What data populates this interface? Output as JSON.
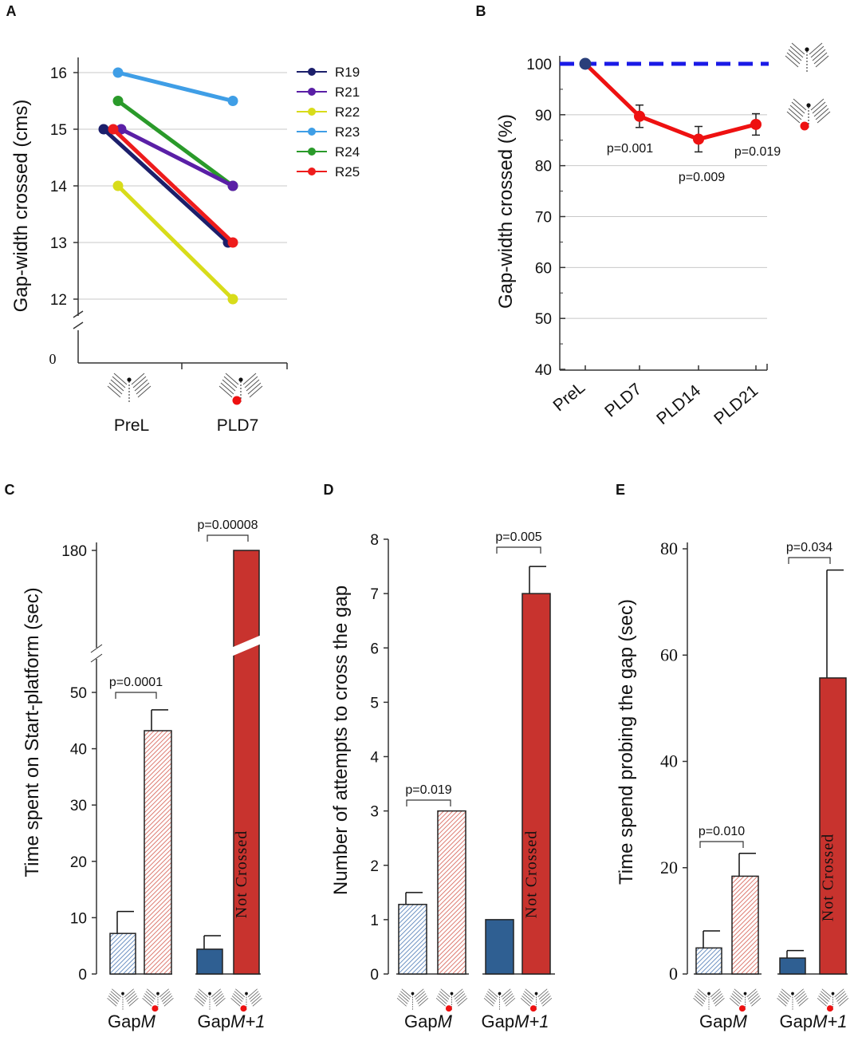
{
  "colors": {
    "blue_dash": "#1a1ae6",
    "red_line": "#ee1111",
    "dark_blue_bar": "#2f5f92",
    "red_bar": "#c8332e",
    "hatch_blue": "#9cb9dc",
    "hatch_red": "#e69a92",
    "grid": "#c8c8c8"
  },
  "icons": [
    "gap-platform-icon",
    "gap-platform-lesion-icon"
  ],
  "chart_data": [
    {
      "panel": "A",
      "type": "line",
      "ylabel": "Gap-width crossed (cms)",
      "categories": [
        "PreL",
        "PLD7"
      ],
      "ylim": [
        12,
        16
      ],
      "yticks": [
        12,
        13,
        14,
        15,
        16
      ],
      "y_break_label": "0",
      "grid": true,
      "legend_position": "top-right",
      "series": [
        {
          "name": "R19",
          "color": "#1c1f6b",
          "values": [
            15.0,
            13.0
          ]
        },
        {
          "name": "R21",
          "color": "#5a1fa6",
          "values": [
            15.0,
            14.0
          ]
        },
        {
          "name": "R22",
          "color": "#d8dc1a",
          "values": [
            14.0,
            12.0
          ]
        },
        {
          "name": "R23",
          "color": "#3f9ee6",
          "values": [
            16.0,
            15.5
          ]
        },
        {
          "name": "R24",
          "color": "#2a9a2a",
          "values": [
            15.5,
            14.0
          ]
        },
        {
          "name": "R25",
          "color": "#ee1c1c",
          "values": [
            15.0,
            13.0
          ]
        }
      ]
    },
    {
      "panel": "B",
      "type": "line",
      "ylabel": "Gap-width crossed (%)",
      "categories": [
        "PreL",
        "PLD7",
        "PLD14",
        "PLD21"
      ],
      "ylim": [
        40,
        100
      ],
      "yticks": [
        40,
        50,
        60,
        70,
        80,
        90,
        100
      ],
      "grid": true,
      "reference_line": 100,
      "series": [
        {
          "name": "lesion",
          "values": [
            100,
            89.7,
            85.2,
            88.1
          ],
          "errors": [
            0,
            2.2,
            2.5,
            2.1
          ]
        }
      ],
      "annotations": [
        "",
        "p=0.001",
        "p=0.009",
        "p=0.019"
      ]
    },
    {
      "panel": "C",
      "type": "bar",
      "ylabel": "Time spent on Start-platform (sec)",
      "groups": [
        "GapM",
        "GapM+1"
      ],
      "ylim": [
        0,
        180
      ],
      "yticks": [
        0,
        10,
        20,
        30,
        40,
        50,
        180
      ],
      "axis_break": [
        55,
        175
      ],
      "bars": [
        {
          "group": "GapM",
          "condition": "PreL",
          "value": 7.2,
          "error": 3.9,
          "style": "hatched-blue"
        },
        {
          "group": "GapM",
          "condition": "PLD7",
          "value": 43.2,
          "error": 3.7,
          "style": "hatched-red"
        },
        {
          "group": "GapM+1",
          "condition": "PreL",
          "value": 4.4,
          "error": 2.4,
          "style": "solid-blue"
        },
        {
          "group": "GapM+1",
          "condition": "PLD7",
          "value": 180,
          "error": 0,
          "style": "solid-red",
          "label": "Not Crossed"
        }
      ],
      "pvalues": [
        "p=0.0001",
        "p=0.00008"
      ]
    },
    {
      "panel": "D",
      "type": "bar",
      "ylabel": "Number of attempts to cross the gap",
      "groups": [
        "GapM",
        "GapM+1"
      ],
      "ylim": [
        0,
        8
      ],
      "yticks": [
        0,
        1,
        2,
        3,
        4,
        5,
        6,
        7,
        8
      ],
      "bars": [
        {
          "group": "GapM",
          "condition": "PreL",
          "value": 1.28,
          "error": 0.22,
          "style": "hatched-blue"
        },
        {
          "group": "GapM",
          "condition": "PLD7",
          "value": 3.0,
          "error": 0,
          "style": "hatched-red"
        },
        {
          "group": "GapM+1",
          "condition": "PreL",
          "value": 1.0,
          "error": 0,
          "style": "solid-blue"
        },
        {
          "group": "GapM+1",
          "condition": "PLD7",
          "value": 7.0,
          "error": 0.5,
          "style": "solid-red",
          "label": "Not Crossed"
        }
      ],
      "pvalues": [
        "p=0.019",
        "p=0.005"
      ]
    },
    {
      "panel": "E",
      "type": "bar",
      "ylabel": "Time spend probing the gap (sec)",
      "groups": [
        "GapM",
        "GapM+1"
      ],
      "ylim": [
        0,
        80
      ],
      "yticks": [
        0,
        20,
        40,
        60,
        80
      ],
      "bars": [
        {
          "group": "GapM",
          "condition": "PreL",
          "value": 4.9,
          "error": 3.2,
          "style": "hatched-blue"
        },
        {
          "group": "GapM",
          "condition": "PLD7",
          "value": 18.4,
          "error": 4.3,
          "style": "hatched-red"
        },
        {
          "group": "GapM+1",
          "condition": "PreL",
          "value": 3.0,
          "error": 1.4,
          "style": "solid-blue"
        },
        {
          "group": "GapM+1",
          "condition": "PLD7",
          "value": 55.7,
          "error": 20.3,
          "style": "solid-red",
          "label": "Not Crossed"
        }
      ],
      "pvalues": [
        "p=0.010",
        "p=0.034"
      ]
    }
  ]
}
